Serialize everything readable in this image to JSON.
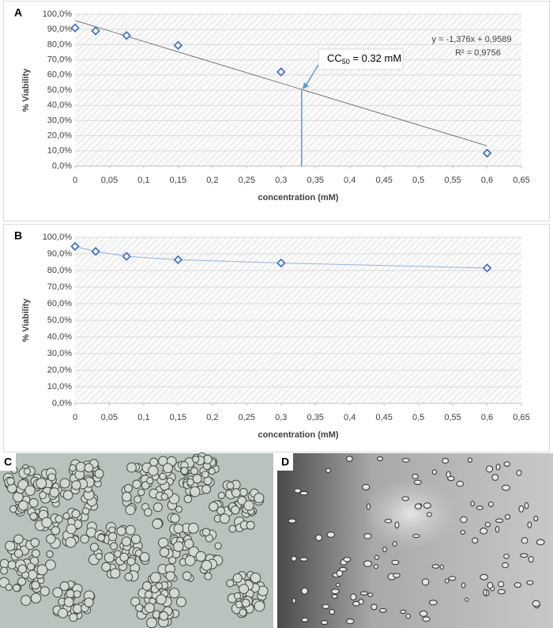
{
  "chart_data": [
    {
      "type": "scatter",
      "label": "A",
      "x_label": "concentration (mM)",
      "y_label": "% Viability",
      "x": [
        0,
        0.03,
        0.075,
        0.15,
        0.3,
        0.6
      ],
      "values": [
        91,
        89,
        86,
        79.5,
        62,
        8.5
      ],
      "color": "#4472c4",
      "xlim": [
        0,
        0.65
      ],
      "ylim": [
        0,
        100
      ],
      "xticks": [
        0,
        {
          "value": 0.05,
          "label": "0,05"
        },
        {
          "value": 0.1,
          "label": "0,1"
        },
        {
          "value": 0.15,
          "label": "0,15"
        },
        {
          "value": 0.2,
          "label": "0,2"
        },
        {
          "value": 0.25,
          "label": "0,25"
        },
        {
          "value": 0.3,
          "label": "0,3"
        },
        {
          "value": 0.35,
          "label": "0,35"
        },
        {
          "value": 0.4,
          "label": "0,4"
        },
        {
          "value": 0.45,
          "label": "0,45"
        },
        {
          "value": 0.5,
          "label": "0,5"
        },
        {
          "value": 0.55,
          "label": "0,55"
        },
        {
          "value": 0.6,
          "label": "0,6"
        },
        {
          "value": 0.65,
          "label": "0,65"
        }
      ],
      "yticks": [
        {
          "value": 0,
          "label": "0,0%"
        },
        {
          "value": 10,
          "label": "10,0%"
        },
        {
          "value": 20,
          "label": "20,0%"
        },
        {
          "value": 30,
          "label": "30,0%"
        },
        {
          "value": 40,
          "label": "40,0%"
        },
        {
          "value": 50,
          "label": "50,0%"
        },
        {
          "value": 60,
          "label": "60,0%"
        },
        {
          "value": 70,
          "label": "70,0%"
        },
        {
          "value": 80,
          "label": "80,0%"
        },
        {
          "value": 90,
          "label": "90,0%"
        },
        {
          "value": 100,
          "label": "100,0%"
        }
      ],
      "grid": true,
      "trendline": {
        "x": [
          0,
          0.6
        ],
        "values": [
          95.89,
          13.33
        ],
        "equation": "y = -1,376x + 0,9589",
        "r2": "R² = 0,9756",
        "color": "#595959"
      },
      "cc50": {
        "x": 0.33,
        "y": 50,
        "prefix": "CC",
        "sub": "50",
        "text": " = 0.32 mM",
        "color": "#5b9bd5"
      }
    },
    {
      "type": "line",
      "label": "B",
      "x_label": "concentration (mM)",
      "y_label": "% Viability",
      "x": [
        0,
        0.03,
        0.075,
        0.15,
        0.3,
        0.6
      ],
      "values": [
        94.5,
        91.5,
        88.5,
        86.5,
        84.5,
        81.5
      ],
      "color": "#4472c4",
      "line_color": "#8fb4e3",
      "xlim": [
        0,
        0.65
      ],
      "ylim": [
        0,
        100
      ],
      "xticks": [
        0,
        {
          "value": 0.05,
          "label": "0,05"
        },
        {
          "value": 0.1,
          "label": "0,1"
        },
        {
          "value": 0.15,
          "label": "0,15"
        },
        {
          "value": 0.2,
          "label": "0,2"
        },
        {
          "value": 0.25,
          "label": "0,25"
        },
        {
          "value": 0.3,
          "label": "0,3"
        },
        {
          "value": 0.35,
          "label": "0,35"
        },
        {
          "value": 0.4,
          "label": "0,4"
        },
        {
          "value": 0.45,
          "label": "0,45"
        },
        {
          "value": 0.5,
          "label": "0,5"
        },
        {
          "value": 0.55,
          "label": "0,55"
        },
        {
          "value": 0.6,
          "label": "0,6"
        },
        {
          "value": 0.65,
          "label": "0,65"
        }
      ],
      "yticks": [
        {
          "value": 0,
          "label": "0,0%"
        },
        {
          "value": 10,
          "label": "10,0%"
        },
        {
          "value": 20,
          "label": "20,0%"
        },
        {
          "value": 30,
          "label": "30,0%"
        },
        {
          "value": 40,
          "label": "40,0%"
        },
        {
          "value": 50,
          "label": "50,0%"
        },
        {
          "value": 60,
          "label": "60,0%"
        },
        {
          "value": 70,
          "label": "70,0%"
        },
        {
          "value": 80,
          "label": "80,0%"
        },
        {
          "value": 90,
          "label": "90,0%"
        },
        {
          "value": 100,
          "label": "100,0%"
        }
      ],
      "grid": true
    }
  ],
  "images": [
    {
      "label": "C"
    },
    {
      "label": "D"
    }
  ]
}
